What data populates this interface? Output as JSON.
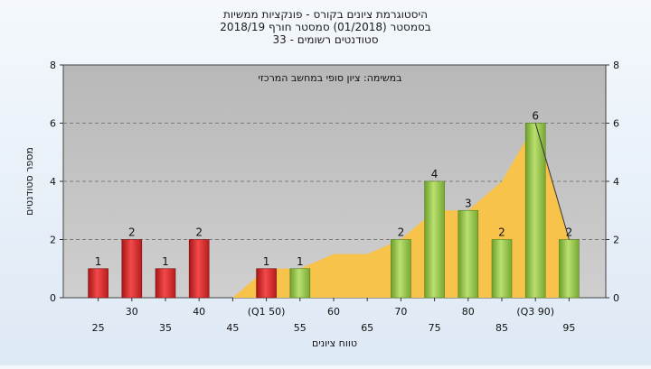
{
  "chart_data": {
    "type": "bar",
    "title_lines": [
      "היסטוגרמת ציונים בקורס - פונקציות ממשיות",
      "בסמסטר  (01/2018)  סמסטר חורף  2018/19",
      "סטודנטים רשומים - 33"
    ],
    "annotation": "במשימה: ציון סופי במחשב המרכזי",
    "xlabel": "טווח ציונים",
    "ylabel": "מספר סטודנטים",
    "ylim": [
      0,
      8
    ],
    "yticks": [
      "0",
      "2",
      "4",
      "6",
      "8"
    ],
    "grid": true,
    "categories": [
      "25",
      "30",
      "35",
      "40",
      "45",
      "(Q1 50)",
      "55",
      "60",
      "65",
      "70",
      "75",
      "80",
      "85",
      "(Q3 90)",
      "95"
    ],
    "values": [
      1,
      2,
      1,
      2,
      0,
      1,
      1,
      0,
      0,
      2,
      4,
      3,
      2,
      6,
      2
    ],
    "value_labels": [
      "1",
      "2",
      "1",
      "2",
      "",
      "1",
      "1",
      "",
      "",
      "2",
      "4",
      "3",
      "2",
      "6",
      "2"
    ],
    "area_series": {
      "values": [
        0,
        0,
        0,
        0,
        0,
        1,
        1,
        1.5,
        1.5,
        2,
        3,
        3,
        4,
        6,
        2
      ]
    },
    "colors": {
      "failing_bar": "#d92b2b",
      "passing_bar": "#8cc63f",
      "area": "#f7c34a",
      "plot_bg": "#c0c0c0"
    },
    "failing_categories": [
      "25",
      "30",
      "35",
      "40",
      "45",
      "(Q1 50)"
    ]
  }
}
